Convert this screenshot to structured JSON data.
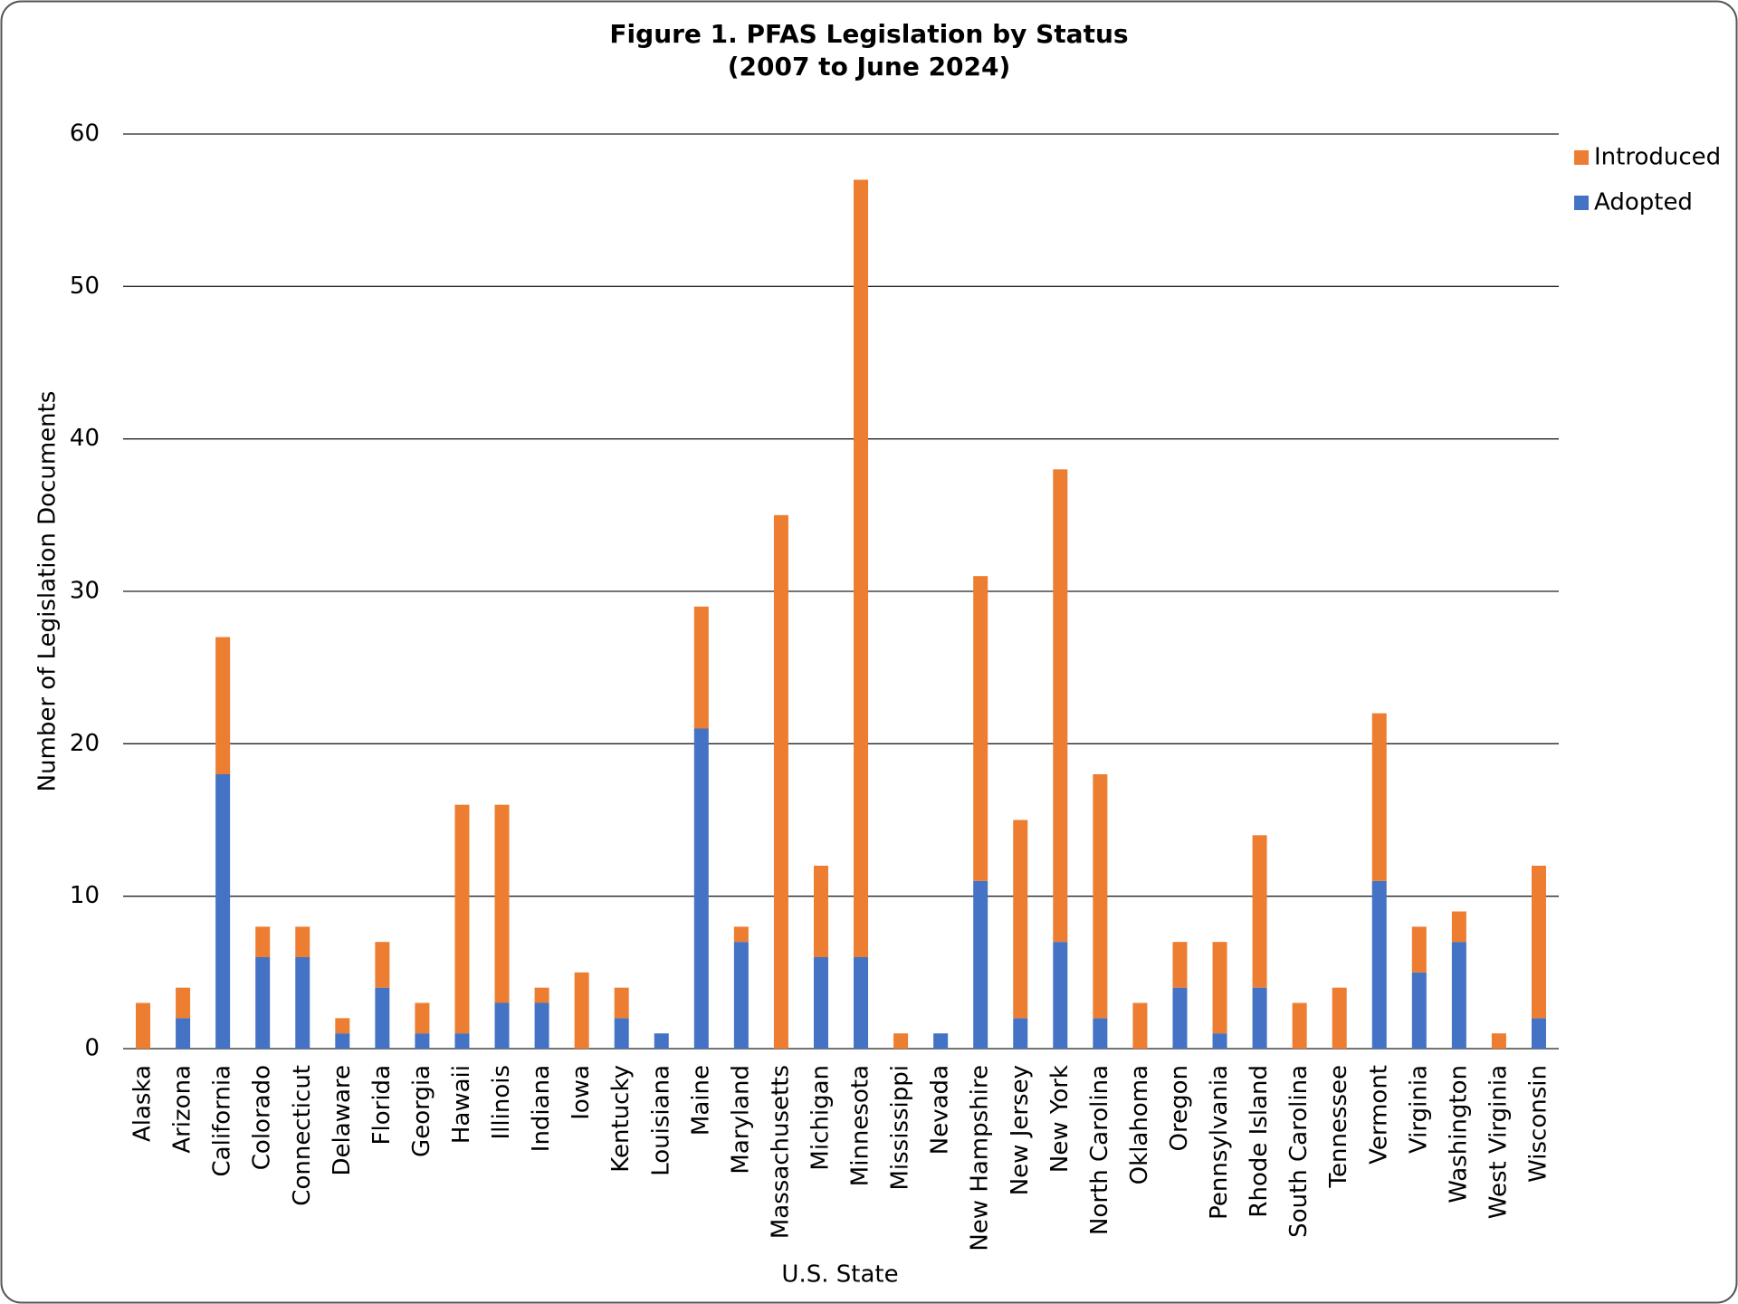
{
  "chart_data": {
    "type": "stacked_bar",
    "title": "Figure 1. PFAS Legislation by Status",
    "subtitle": "(2007 to June 2024)",
    "x_label": "U.S. State",
    "y_label": "Number of Legislation Documents",
    "categories": [
      "Alaska",
      "Arizona",
      "California",
      "Colorado",
      "Connecticut",
      "Delaware",
      "Florida",
      "Georgia",
      "Hawaii",
      "Illinois",
      "Indiana",
      "Iowa",
      "Kentucky",
      "Louisiana",
      "Maine",
      "Maryland",
      "Massachusetts",
      "Michigan",
      "Minnesota",
      "Mississippi",
      "Nevada",
      "New Hampshire",
      "New Jersey",
      "New York",
      "North Carolina",
      "Oklahoma",
      "Oregon",
      "Pennsylvania",
      "Rhode Island",
      "South Carolina",
      "Tennessee",
      "Vermont",
      "Virginia",
      "Washington",
      "West Virginia",
      "Wisconsin"
    ],
    "series": [
      {
        "name": "Adopted",
        "color": "#4472c4",
        "values": [
          0,
          2,
          18,
          6,
          6,
          1,
          4,
          1,
          1,
          3,
          3,
          0,
          2,
          1,
          21,
          7,
          0,
          6,
          6,
          0,
          1,
          11,
          2,
          7,
          2,
          0,
          4,
          1,
          4,
          0,
          0,
          11,
          5,
          7,
          0,
          2
        ]
      },
      {
        "name": "Introduced",
        "color": "#ed7d31",
        "values": [
          3,
          2,
          9,
          2,
          2,
          1,
          3,
          2,
          15,
          13,
          1,
          5,
          2,
          0,
          8,
          1,
          35,
          6,
          51,
          1,
          0,
          20,
          13,
          31,
          16,
          3,
          3,
          6,
          10,
          3,
          4,
          11,
          3,
          2,
          1,
          10
        ]
      }
    ],
    "ylim": [
      0,
      60
    ],
    "yticks": [
      0,
      10,
      20,
      30,
      40,
      50,
      60
    ],
    "grid": true,
    "legend": "right"
  }
}
